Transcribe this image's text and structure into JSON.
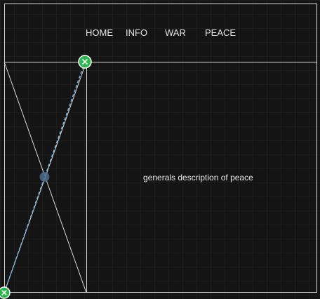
{
  "nav": {
    "items": [
      {
        "label": "HOME"
      },
      {
        "label": "INFO"
      },
      {
        "label": "WAR"
      },
      {
        "label": "PEACE"
      }
    ]
  },
  "main": {
    "description": "generals description of peace"
  },
  "colors": {
    "background": "#141414",
    "lines": "#d9d9d9",
    "selection_line": "#6cb4e4",
    "handle": "#2db84d"
  },
  "icons": [
    "close-icon",
    "close-icon",
    "midpoint-handle"
  ]
}
